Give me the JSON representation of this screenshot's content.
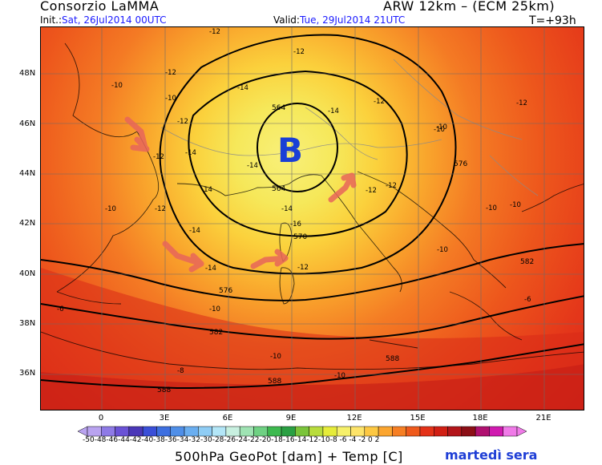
{
  "header": {
    "org": "Consorzio LaMMA",
    "model": "ARW 12km – (ECM 25km)",
    "init_label": "Init.:",
    "init_value": "Sat, 26Jul2014 00UTC",
    "valid_label": "Valid:",
    "valid_value": "Tue, 29Jul2014 21UTC",
    "forecast_step": "T=+93h"
  },
  "axes": {
    "lat_labels": [
      "48N",
      "46N",
      "44N",
      "42N",
      "40N",
      "38N",
      "36N"
    ],
    "lon_labels": [
      "0",
      "3E",
      "6E",
      "9E",
      "12E",
      "15E",
      "18E",
      "21E"
    ]
  },
  "map": {
    "low_center_symbol": "B",
    "low_center_color": "#1a3fd6",
    "geopotential_labels": [
      "564",
      "564",
      "570",
      "576",
      "576",
      "582",
      "582",
      "588",
      "588",
      "588"
    ],
    "temperature_labels": [
      "-12",
      "-12",
      "-12",
      "-14",
      "-12",
      "-12",
      "-10",
      "-14",
      "-14",
      "-12",
      "-10",
      "-10",
      "-12",
      "-14",
      "-14",
      "-12",
      "-12",
      "-14",
      "-16",
      "-12",
      "-14",
      "-14",
      "-12",
      "-10",
      "-10",
      "-10",
      "-10",
      "-10",
      "-8",
      "-6",
      "-6",
      "-10",
      "-10",
      "-10"
    ]
  },
  "colorbar": {
    "labels": "-50-48-46-44-42-40-38-36-34-32-30-28-26-24-22-20-18-16-14-12-10-8 -6 -4 -2 0 2",
    "colors": [
      "#b9a3f0",
      "#8e7ae6",
      "#6a52d6",
      "#4a37b8",
      "#3a4fd8",
      "#3d6fe0",
      "#4f8fe8",
      "#6aaef0",
      "#8fcdf5",
      "#b3e6f7",
      "#c8f0e0",
      "#9fe3b3",
      "#6fd183",
      "#3db94f",
      "#2aa043",
      "#7ac43a",
      "#b8dc3c",
      "#e6ec3a",
      "#f6f06a",
      "#fde46a",
      "#fdc842",
      "#fba52f",
      "#f67f24",
      "#ef5a1c",
      "#e43218",
      "#d11f14",
      "#b3151a",
      "#8c0f16",
      "#b01070",
      "#d01ab0",
      "#f07ae8"
    ],
    "field_label": "500hPa GeoPot [dam] + Temp [C]",
    "note": "martedì sera"
  }
}
